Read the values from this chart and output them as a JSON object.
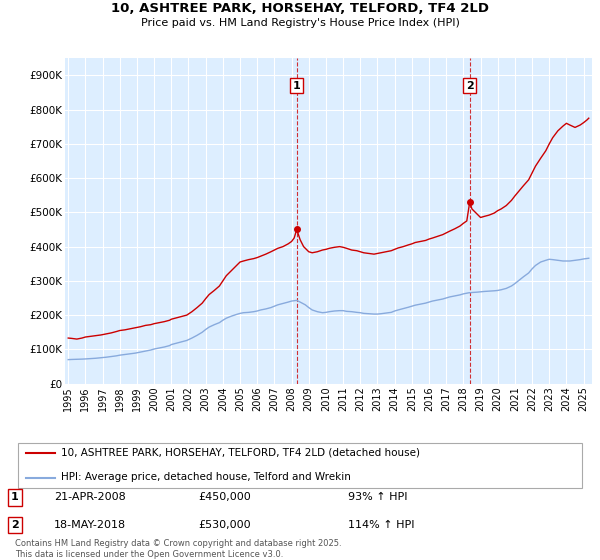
{
  "title_line1": "10, ASHTREE PARK, HORSEHAY, TELFORD, TF4 2LD",
  "title_line2": "Price paid vs. HM Land Registry's House Price Index (HPI)",
  "background_color": "#ffffff",
  "plot_bg_color": "#ddeeff",
  "grid_color": "#ffffff",
  "red_line_color": "#cc0000",
  "blue_line_color": "#88aadd",
  "marker1_date_x": 2008.3,
  "marker2_date_x": 2018.37,
  "legend_label_red": "10, ASHTREE PARK, HORSEHAY, TELFORD, TF4 2LD (detached house)",
  "legend_label_blue": "HPI: Average price, detached house, Telford and Wrekin",
  "annotation1_date": "21-APR-2008",
  "annotation1_price": "£450,000",
  "annotation1_hpi": "93% ↑ HPI",
  "annotation2_date": "18-MAY-2018",
  "annotation2_price": "£530,000",
  "annotation2_hpi": "114% ↑ HPI",
  "footer": "Contains HM Land Registry data © Crown copyright and database right 2025.\nThis data is licensed under the Open Government Licence v3.0.",
  "ylim": [
    0,
    950000
  ],
  "xlim_start": 1994.8,
  "xlim_end": 2025.5,
  "hpi_red_data": [
    [
      1995.0,
      133000
    ],
    [
      1995.2,
      132000
    ],
    [
      1995.5,
      130000
    ],
    [
      1995.8,
      133000
    ],
    [
      1996.0,
      136000
    ],
    [
      1996.3,
      138000
    ],
    [
      1996.6,
      140000
    ],
    [
      1996.9,
      142000
    ],
    [
      1997.2,
      145000
    ],
    [
      1997.5,
      148000
    ],
    [
      1997.8,
      152000
    ],
    [
      1998.0,
      155000
    ],
    [
      1998.3,
      157000
    ],
    [
      1998.6,
      160000
    ],
    [
      1998.9,
      163000
    ],
    [
      1999.2,
      166000
    ],
    [
      1999.5,
      170000
    ],
    [
      1999.8,
      172000
    ],
    [
      2000.0,
      175000
    ],
    [
      2000.3,
      178000
    ],
    [
      2000.6,
      181000
    ],
    [
      2000.9,
      185000
    ],
    [
      2001.0,
      188000
    ],
    [
      2001.3,
      192000
    ],
    [
      2001.6,
      196000
    ],
    [
      2001.9,
      200000
    ],
    [
      2002.2,
      210000
    ],
    [
      2002.5,
      222000
    ],
    [
      2002.8,
      235000
    ],
    [
      2003.0,
      248000
    ],
    [
      2003.2,
      260000
    ],
    [
      2003.5,
      272000
    ],
    [
      2003.8,
      285000
    ],
    [
      2004.0,
      300000
    ],
    [
      2004.2,
      315000
    ],
    [
      2004.5,
      330000
    ],
    [
      2004.8,
      345000
    ],
    [
      2005.0,
      355000
    ],
    [
      2005.2,
      358000
    ],
    [
      2005.5,
      362000
    ],
    [
      2005.8,
      365000
    ],
    [
      2006.0,
      368000
    ],
    [
      2006.2,
      372000
    ],
    [
      2006.5,
      378000
    ],
    [
      2006.8,
      385000
    ],
    [
      2007.0,
      390000
    ],
    [
      2007.2,
      395000
    ],
    [
      2007.5,
      400000
    ],
    [
      2007.8,
      408000
    ],
    [
      2008.0,
      415000
    ],
    [
      2008.15,
      425000
    ],
    [
      2008.3,
      450000
    ],
    [
      2008.5,
      420000
    ],
    [
      2008.7,
      400000
    ],
    [
      2008.9,
      390000
    ],
    [
      2009.0,
      385000
    ],
    [
      2009.2,
      382000
    ],
    [
      2009.5,
      385000
    ],
    [
      2009.8,
      390000
    ],
    [
      2010.0,
      392000
    ],
    [
      2010.2,
      395000
    ],
    [
      2010.5,
      398000
    ],
    [
      2010.8,
      400000
    ],
    [
      2011.0,
      398000
    ],
    [
      2011.2,
      395000
    ],
    [
      2011.5,
      390000
    ],
    [
      2011.8,
      388000
    ],
    [
      2012.0,
      385000
    ],
    [
      2012.2,
      382000
    ],
    [
      2012.5,
      380000
    ],
    [
      2012.8,
      378000
    ],
    [
      2013.0,
      380000
    ],
    [
      2013.2,
      382000
    ],
    [
      2013.5,
      385000
    ],
    [
      2013.8,
      388000
    ],
    [
      2014.0,
      392000
    ],
    [
      2014.2,
      396000
    ],
    [
      2014.5,
      400000
    ],
    [
      2014.8,
      405000
    ],
    [
      2015.0,
      408000
    ],
    [
      2015.2,
      412000
    ],
    [
      2015.5,
      415000
    ],
    [
      2015.8,
      418000
    ],
    [
      2016.0,
      422000
    ],
    [
      2016.2,
      425000
    ],
    [
      2016.5,
      430000
    ],
    [
      2016.8,
      435000
    ],
    [
      2017.0,
      440000
    ],
    [
      2017.2,
      445000
    ],
    [
      2017.5,
      452000
    ],
    [
      2017.8,
      460000
    ],
    [
      2018.0,
      468000
    ],
    [
      2018.2,
      475000
    ],
    [
      2018.37,
      530000
    ],
    [
      2018.5,
      510000
    ],
    [
      2018.7,
      500000
    ],
    [
      2018.9,
      490000
    ],
    [
      2019.0,
      485000
    ],
    [
      2019.2,
      488000
    ],
    [
      2019.5,
      492000
    ],
    [
      2019.8,
      498000
    ],
    [
      2020.0,
      505000
    ],
    [
      2020.2,
      510000
    ],
    [
      2020.5,
      520000
    ],
    [
      2020.8,
      535000
    ],
    [
      2021.0,
      548000
    ],
    [
      2021.2,
      560000
    ],
    [
      2021.5,
      578000
    ],
    [
      2021.8,
      595000
    ],
    [
      2022.0,
      615000
    ],
    [
      2022.2,
      635000
    ],
    [
      2022.5,
      658000
    ],
    [
      2022.8,
      680000
    ],
    [
      2023.0,
      700000
    ],
    [
      2023.2,
      718000
    ],
    [
      2023.5,
      738000
    ],
    [
      2023.8,
      752000
    ],
    [
      2024.0,
      760000
    ],
    [
      2024.2,
      755000
    ],
    [
      2024.5,
      748000
    ],
    [
      2024.8,
      755000
    ],
    [
      2025.0,
      762000
    ],
    [
      2025.2,
      770000
    ],
    [
      2025.3,
      775000
    ]
  ],
  "hpi_blue_data": [
    [
      1995.0,
      70000
    ],
    [
      1995.2,
      70500
    ],
    [
      1995.5,
      71000
    ],
    [
      1995.8,
      71500
    ],
    [
      1996.0,
      72000
    ],
    [
      1996.3,
      73000
    ],
    [
      1996.6,
      74000
    ],
    [
      1996.9,
      75500
    ],
    [
      1997.2,
      77000
    ],
    [
      1997.5,
      79000
    ],
    [
      1997.8,
      81000
    ],
    [
      1998.0,
      83000
    ],
    [
      1998.3,
      85000
    ],
    [
      1998.6,
      87000
    ],
    [
      1998.9,
      89000
    ],
    [
      1999.2,
      92000
    ],
    [
      1999.5,
      95000
    ],
    [
      1999.8,
      98000
    ],
    [
      2000.0,
      101000
    ],
    [
      2000.3,
      104000
    ],
    [
      2000.6,
      107000
    ],
    [
      2000.9,
      111000
    ],
    [
      2001.0,
      114000
    ],
    [
      2001.3,
      118000
    ],
    [
      2001.6,
      122000
    ],
    [
      2001.9,
      126000
    ],
    [
      2002.2,
      133000
    ],
    [
      2002.5,
      141000
    ],
    [
      2002.8,
      150000
    ],
    [
      2003.0,
      158000
    ],
    [
      2003.2,
      165000
    ],
    [
      2003.5,
      172000
    ],
    [
      2003.8,
      178000
    ],
    [
      2004.0,
      185000
    ],
    [
      2004.2,
      191000
    ],
    [
      2004.5,
      197000
    ],
    [
      2004.8,
      202000
    ],
    [
      2005.0,
      205000
    ],
    [
      2005.2,
      207000
    ],
    [
      2005.5,
      208000
    ],
    [
      2005.8,
      210000
    ],
    [
      2006.0,
      212000
    ],
    [
      2006.2,
      215000
    ],
    [
      2006.5,
      218000
    ],
    [
      2006.8,
      222000
    ],
    [
      2007.0,
      226000
    ],
    [
      2007.2,
      230000
    ],
    [
      2007.5,
      234000
    ],
    [
      2007.8,
      238000
    ],
    [
      2008.0,
      241000
    ],
    [
      2008.3,
      243000
    ],
    [
      2008.5,
      238000
    ],
    [
      2008.8,
      230000
    ],
    [
      2009.0,
      222000
    ],
    [
      2009.2,
      215000
    ],
    [
      2009.5,
      210000
    ],
    [
      2009.8,
      207000
    ],
    [
      2010.0,
      208000
    ],
    [
      2010.2,
      210000
    ],
    [
      2010.5,
      212000
    ],
    [
      2010.8,
      213000
    ],
    [
      2011.0,
      213000
    ],
    [
      2011.2,
      211000
    ],
    [
      2011.5,
      210000
    ],
    [
      2011.8,
      208000
    ],
    [
      2012.0,
      207000
    ],
    [
      2012.2,
      205000
    ],
    [
      2012.5,
      204000
    ],
    [
      2012.8,
      203000
    ],
    [
      2013.0,
      203000
    ],
    [
      2013.2,
      204000
    ],
    [
      2013.5,
      206000
    ],
    [
      2013.8,
      208000
    ],
    [
      2014.0,
      212000
    ],
    [
      2014.2,
      215000
    ],
    [
      2014.5,
      219000
    ],
    [
      2014.8,
      223000
    ],
    [
      2015.0,
      226000
    ],
    [
      2015.2,
      229000
    ],
    [
      2015.5,
      232000
    ],
    [
      2015.8,
      235000
    ],
    [
      2016.0,
      238000
    ],
    [
      2016.2,
      241000
    ],
    [
      2016.5,
      244000
    ],
    [
      2016.8,
      247000
    ],
    [
      2017.0,
      250000
    ],
    [
      2017.2,
      253000
    ],
    [
      2017.5,
      256000
    ],
    [
      2017.8,
      259000
    ],
    [
      2018.0,
      262000
    ],
    [
      2018.3,
      265000
    ],
    [
      2018.5,
      266000
    ],
    [
      2018.8,
      267000
    ],
    [
      2019.0,
      268000
    ],
    [
      2019.2,
      269000
    ],
    [
      2019.5,
      270000
    ],
    [
      2019.8,
      271000
    ],
    [
      2020.0,
      272000
    ],
    [
      2020.2,
      274000
    ],
    [
      2020.5,
      278000
    ],
    [
      2020.8,
      285000
    ],
    [
      2021.0,
      292000
    ],
    [
      2021.2,
      300000
    ],
    [
      2021.5,
      312000
    ],
    [
      2021.8,
      323000
    ],
    [
      2022.0,
      335000
    ],
    [
      2022.2,
      345000
    ],
    [
      2022.5,
      355000
    ],
    [
      2022.8,
      360000
    ],
    [
      2023.0,
      363000
    ],
    [
      2023.2,
      362000
    ],
    [
      2023.5,
      360000
    ],
    [
      2023.8,
      358000
    ],
    [
      2024.0,
      358000
    ],
    [
      2024.2,
      358000
    ],
    [
      2024.5,
      360000
    ],
    [
      2024.8,
      362000
    ],
    [
      2025.0,
      364000
    ],
    [
      2025.3,
      366000
    ]
  ],
  "yticks": [
    0,
    100000,
    200000,
    300000,
    400000,
    500000,
    600000,
    700000,
    800000,
    900000
  ],
  "ytick_labels": [
    "£0",
    "£100K",
    "£200K",
    "£300K",
    "£400K",
    "£500K",
    "£600K",
    "£700K",
    "£800K",
    "£900K"
  ],
  "xticks": [
    1995,
    1996,
    1997,
    1998,
    1999,
    2000,
    2001,
    2002,
    2003,
    2004,
    2005,
    2006,
    2007,
    2008,
    2009,
    2010,
    2011,
    2012,
    2013,
    2014,
    2015,
    2016,
    2017,
    2018,
    2019,
    2020,
    2021,
    2022,
    2023,
    2024,
    2025
  ]
}
